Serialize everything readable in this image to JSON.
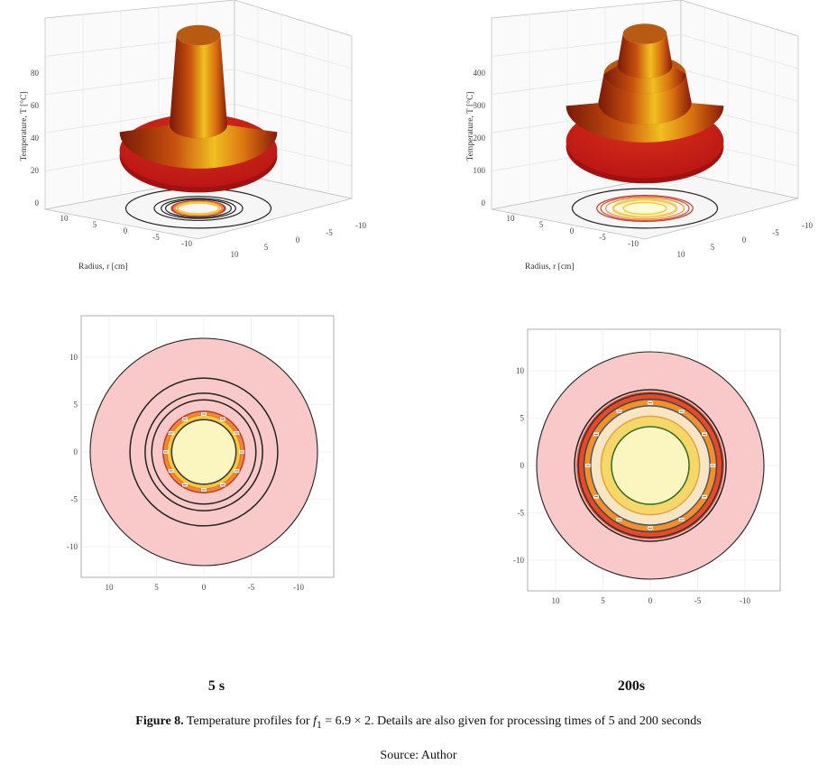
{
  "figure": {
    "caption_prefix": "Figure 8.",
    "caption_text_1": " Temperature profiles for ",
    "caption_symbol": "f",
    "caption_subscript": "1",
    "caption_text_2": " = 6.9 × 2. Details are also given for processing times of 5 and 200 seconds",
    "source": "Source: Author"
  },
  "chart_data": [
    {
      "type": "surface",
      "time_label": "5 s",
      "zlabel": "Temperature, T [°C]",
      "xlabel": "Radius, r [cm]",
      "z_ticks": [
        "0",
        "20",
        "40",
        "60",
        "80"
      ],
      "x_ticks": [
        "10",
        "5",
        "0",
        "-5",
        "-10"
      ],
      "y_ticks": [
        "10",
        "5",
        "0",
        "-5",
        "-10"
      ],
      "zlim": [
        0,
        95
      ],
      "profile": [
        {
          "r": 0,
          "T": 90
        },
        {
          "r": 3.2,
          "T": 88
        },
        {
          "r": 4.2,
          "T": 25
        },
        {
          "r": 11.5,
          "T": 20
        }
      ]
    },
    {
      "type": "surface",
      "time_label": "200s",
      "zlabel": "Temperature, T [°C]",
      "xlabel": "Radius, r [cm]",
      "z_ticks": [
        "0",
        "100",
        "200",
        "300",
        "400"
      ],
      "x_ticks": [
        "10",
        "5",
        "0",
        "-5",
        "-10"
      ],
      "y_ticks": [
        "10",
        "5",
        "0",
        "-5",
        "-10"
      ],
      "zlim": [
        0,
        470
      ],
      "profile": [
        {
          "r": 0,
          "T": 450
        },
        {
          "r": 3.2,
          "T": 440
        },
        {
          "r": 4.0,
          "T": 330
        },
        {
          "r": 6.0,
          "T": 300
        },
        {
          "r": 6.8,
          "T": 200
        },
        {
          "r": 11.5,
          "T": 190
        }
      ]
    },
    {
      "type": "contour",
      "time_label": "5 s",
      "x_ticks": [
        "10",
        "5",
        "0",
        "-5",
        "-10"
      ],
      "y_ticks": [
        "10",
        "5",
        "0",
        "-5",
        "-10"
      ],
      "domain_radius": 12,
      "fill_bands": [
        {
          "r": 12,
          "color": "#f9c9c9"
        },
        {
          "r": 4.3,
          "color": "#f08a3a"
        },
        {
          "r": 3.9,
          "color": "#f5c842"
        },
        {
          "r": 3.4,
          "color": "#fbf6c0"
        }
      ],
      "contour_lines": [
        {
          "r": 12,
          "color": "#222222"
        },
        {
          "r": 7.8,
          "color": "#222222"
        },
        {
          "r": 6.2,
          "color": "#222222"
        },
        {
          "r": 5.5,
          "color": "#222222"
        },
        {
          "r": 4.3,
          "color": "#c0392b"
        },
        {
          "r": 3.9,
          "color": "#e67e22"
        },
        {
          "r": 3.4,
          "color": "#333333"
        }
      ]
    },
    {
      "type": "contour",
      "time_label": "200s",
      "x_ticks": [
        "10",
        "5",
        "0",
        "-5",
        "-10"
      ],
      "y_ticks": [
        "10",
        "5",
        "0",
        "-5",
        "-10"
      ],
      "domain_radius": 12,
      "fill_bands": [
        {
          "r": 12,
          "color": "#f9c9c9"
        },
        {
          "r": 7.8,
          "color": "#e64a2a"
        },
        {
          "r": 7.0,
          "color": "#f0902e"
        },
        {
          "r": 6.3,
          "color": "#f7e6c6"
        },
        {
          "r": 5.2,
          "color": "#f6d86a"
        },
        {
          "r": 4.1,
          "color": "#fbf6c0"
        }
      ],
      "contour_lines": [
        {
          "r": 12,
          "color": "#222222"
        },
        {
          "r": 8.0,
          "color": "#222222"
        },
        {
          "r": 7.6,
          "color": "#333333"
        },
        {
          "r": 7.0,
          "color": "#444444"
        },
        {
          "r": 6.3,
          "color": "#555555"
        },
        {
          "r": 5.2,
          "color": "#e6a23c"
        },
        {
          "r": 4.1,
          "color": "#2e6b1e"
        }
      ]
    }
  ]
}
